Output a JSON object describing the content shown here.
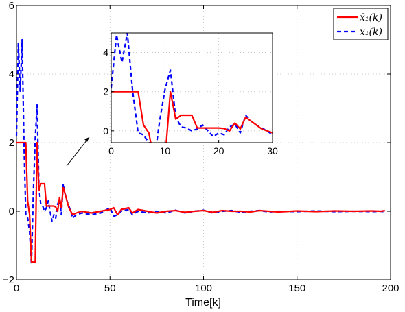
{
  "chart_data": [
    {
      "type": "line",
      "title": "",
      "xlabel": "Time[k]",
      "ylabel": "",
      "xlim": [
        0,
        200
      ],
      "ylim": [
        -2,
        6
      ],
      "grid": true,
      "legend_position": "top-right",
      "x_ticks": [
        "0",
        "50",
        "100",
        "150",
        "200"
      ],
      "y_ticks": [
        "−2",
        "0",
        "2",
        "4",
        "6"
      ],
      "series": [
        {
          "name": "x̄₁(k)",
          "color": "#ff0000",
          "style": "solid",
          "points": [
            [
              0,
              2
            ],
            [
              1,
              2
            ],
            [
              2,
              2
            ],
            [
              3,
              2
            ],
            [
              4,
              2
            ],
            [
              5,
              2
            ],
            [
              6,
              0.3
            ],
            [
              7,
              -0.1
            ],
            [
              8,
              -1.48
            ],
            [
              9,
              -1.48
            ],
            [
              10,
              -1.48
            ],
            [
              11,
              2.0
            ],
            [
              12,
              0.6
            ],
            [
              13,
              0.8
            ],
            [
              14,
              0.8
            ],
            [
              15,
              0.8
            ],
            [
              16,
              0.15
            ],
            [
              17,
              0.15
            ],
            [
              18,
              0.15
            ],
            [
              19,
              0.15
            ],
            [
              20,
              0.15
            ],
            [
              21,
              0.12
            ],
            [
              22,
              0.0
            ],
            [
              23,
              0.4
            ],
            [
              24,
              0.1
            ],
            [
              25,
              0.7
            ],
            [
              26,
              0.5
            ],
            [
              27,
              0.3
            ],
            [
              28,
              0.1
            ],
            [
              29,
              0.0
            ],
            [
              30,
              -0.1
            ],
            [
              32,
              -0.05
            ],
            [
              35,
              0.0
            ],
            [
              40,
              -0.05
            ],
            [
              45,
              0.0
            ],
            [
              50,
              0.05
            ],
            [
              52,
              0.1
            ],
            [
              54,
              -0.1
            ],
            [
              56,
              0.05
            ],
            [
              60,
              0.1
            ],
            [
              62,
              -0.05
            ],
            [
              65,
              0.05
            ],
            [
              70,
              0.0
            ],
            [
              75,
              -0.05
            ],
            [
              80,
              0.0
            ],
            [
              85,
              0.02
            ],
            [
              90,
              -0.03
            ],
            [
              95,
              0.0
            ],
            [
              100,
              0.02
            ],
            [
              105,
              -0.03
            ],
            [
              110,
              0.02
            ],
            [
              115,
              0.0
            ],
            [
              120,
              0.0
            ],
            [
              125,
              -0.02
            ],
            [
              130,
              0.02
            ],
            [
              135,
              0.0
            ],
            [
              140,
              -0.02
            ],
            [
              150,
              0.01
            ],
            [
              160,
              -0.01
            ],
            [
              170,
              0.01
            ],
            [
              180,
              0.0
            ],
            [
              190,
              0.01
            ],
            [
              195,
              0.0
            ],
            [
              197,
              0.02
            ]
          ]
        },
        {
          "name": "x₁(k)",
          "color": "#0000ff",
          "style": "dashed",
          "points": [
            [
              0,
              2.2
            ],
            [
              1,
              4.9
            ],
            [
              2,
              3.5
            ],
            [
              3,
              5.0
            ],
            [
              4,
              2.0
            ],
            [
              5,
              -0.1
            ],
            [
              6,
              -0.2
            ],
            [
              7,
              -0.6
            ],
            [
              8,
              -1.55
            ],
            [
              9,
              0.5
            ],
            [
              10,
              2.1
            ],
            [
              11,
              3.1
            ],
            [
              12,
              0.7
            ],
            [
              13,
              0.2
            ],
            [
              14,
              0.15
            ],
            [
              15,
              0.0
            ],
            [
              16,
              0.1
            ],
            [
              17,
              0.3
            ],
            [
              18,
              0.0
            ],
            [
              19,
              -0.3
            ],
            [
              20,
              -0.1
            ],
            [
              21,
              -0.2
            ],
            [
              22,
              0.2
            ],
            [
              23,
              0.35
            ],
            [
              24,
              -0.1
            ],
            [
              25,
              0.8
            ],
            [
              26,
              0.5
            ],
            [
              27,
              0.3
            ],
            [
              28,
              0.15
            ],
            [
              29,
              0.0
            ],
            [
              30,
              -0.2
            ],
            [
              32,
              -0.1
            ],
            [
              35,
              -0.05
            ],
            [
              40,
              -0.1
            ],
            [
              45,
              -0.05
            ],
            [
              50,
              0.1
            ],
            [
              52,
              -0.15
            ],
            [
              54,
              -0.1
            ],
            [
              56,
              0.0
            ],
            [
              60,
              0.05
            ],
            [
              62,
              -0.1
            ],
            [
              65,
              0.0
            ],
            [
              70,
              -0.05
            ],
            [
              75,
              0.0
            ],
            [
              80,
              -0.05
            ],
            [
              85,
              0.03
            ],
            [
              90,
              -0.05
            ],
            [
              95,
              0.0
            ],
            [
              100,
              0.03
            ],
            [
              105,
              -0.05
            ],
            [
              110,
              0.0
            ],
            [
              115,
              0.02
            ],
            [
              120,
              -0.03
            ],
            [
              125,
              0.0
            ],
            [
              130,
              0.02
            ],
            [
              135,
              -0.02
            ],
            [
              140,
              0.0
            ],
            [
              150,
              -0.01
            ],
            [
              160,
              0.01
            ],
            [
              170,
              -0.01
            ],
            [
              180,
              0.0
            ],
            [
              190,
              -0.01
            ],
            [
              195,
              0.0
            ],
            [
              197,
              -0.02
            ]
          ]
        }
      ]
    },
    {
      "type": "line",
      "title": "",
      "role": "inset zoom",
      "xlim": [
        0,
        30
      ],
      "ylim": [
        -0.6,
        5
      ],
      "x_ticks": [
        "0",
        "10",
        "20",
        "30"
      ],
      "y_ticks": [
        "0",
        "2",
        "4"
      ],
      "grid": true,
      "note_series": "same series as main chart, x range 0-30"
    }
  ]
}
